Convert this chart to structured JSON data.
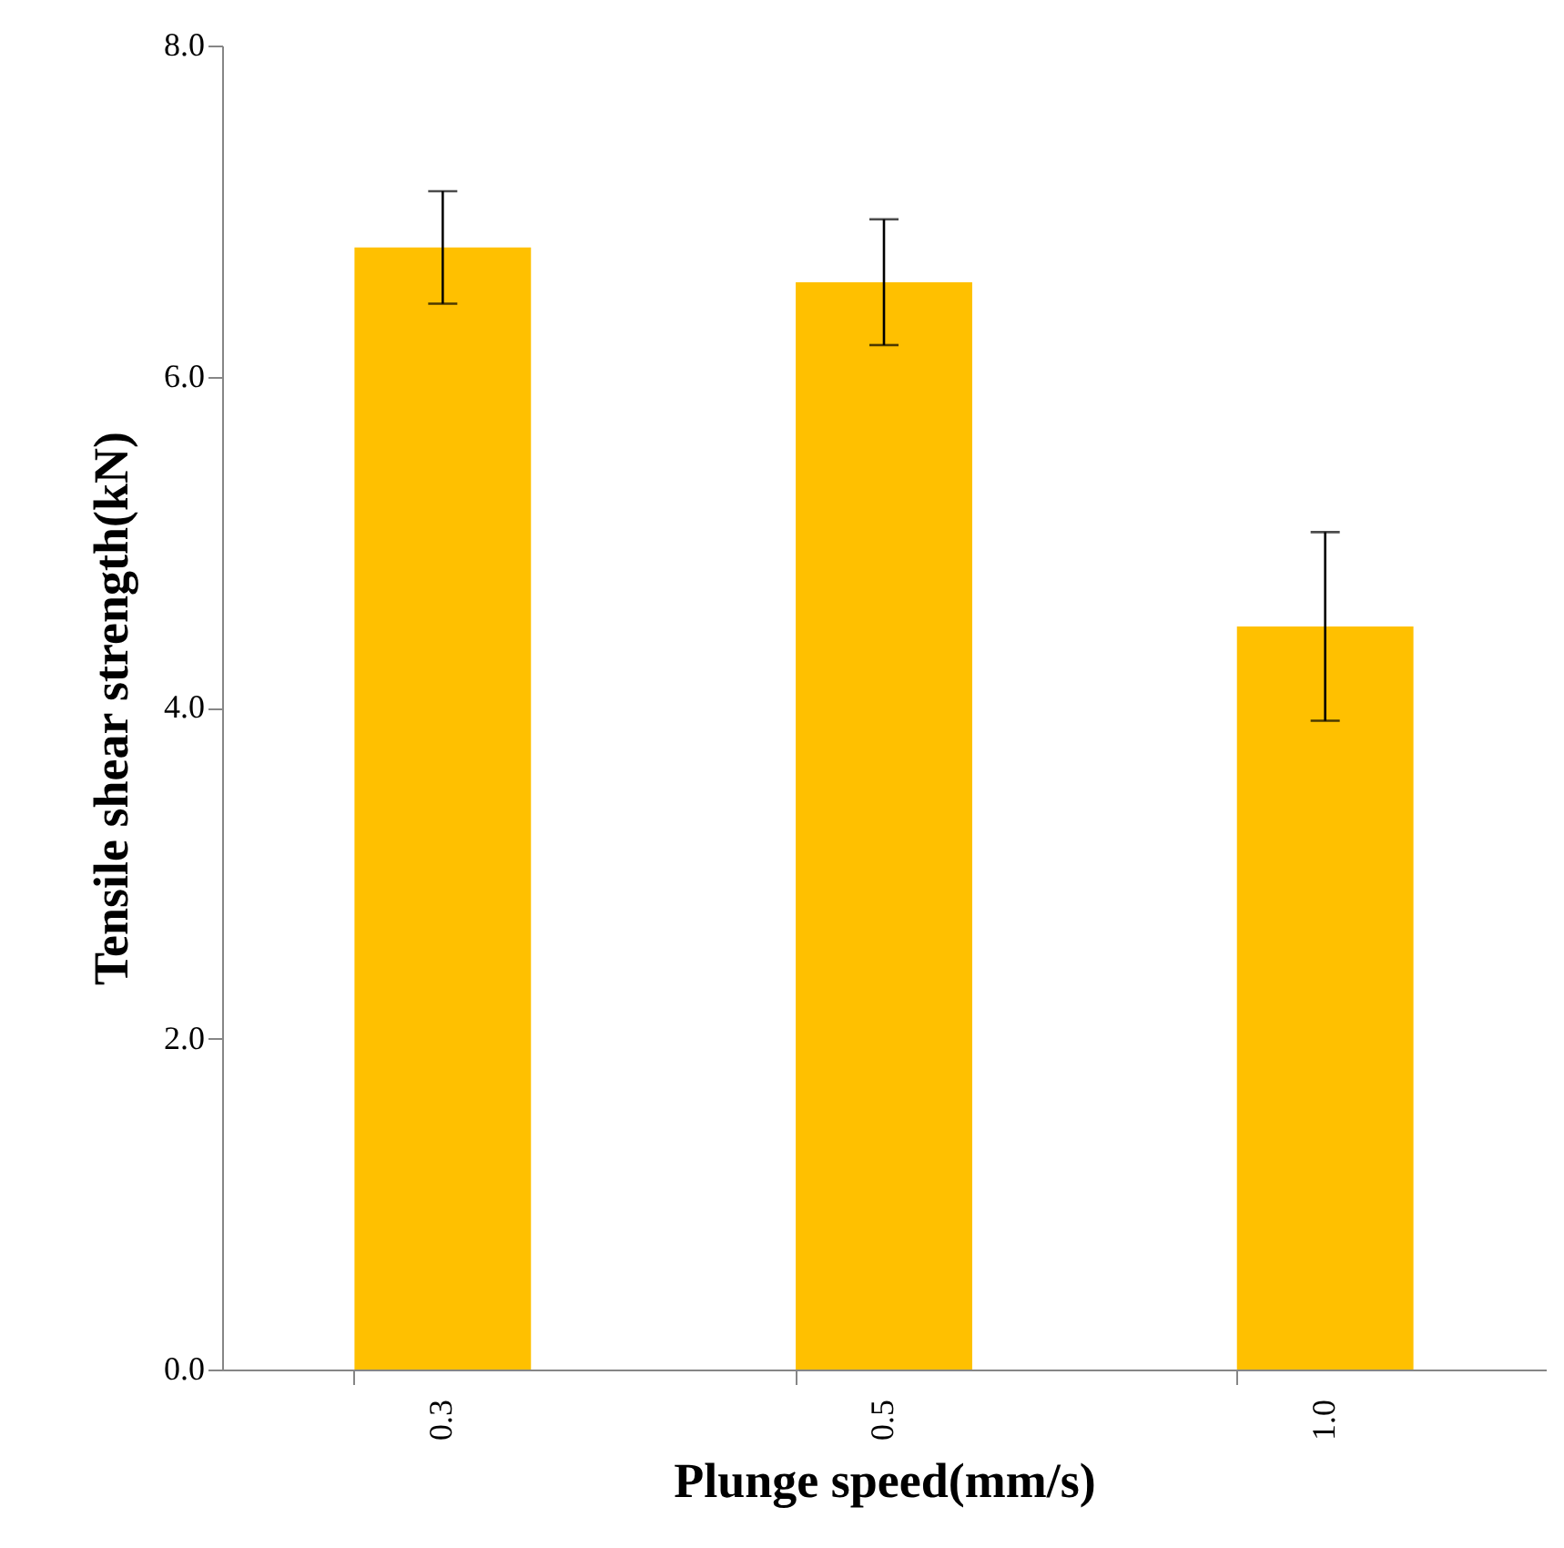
{
  "chart_data": {
    "type": "bar",
    "xlabel": "Plunge speed(mm/s)",
    "ylabel": "Tensile shear strength(kN)",
    "categories": [
      "0.3",
      "0.5",
      "1.0"
    ],
    "values": [
      6.78,
      6.57,
      4.49
    ],
    "errors": [
      0.34,
      0.38,
      0.57
    ],
    "color": "#ffc000",
    "ylim": [
      0,
      8
    ],
    "yticks": [
      {
        "value": 0,
        "label": "0.0"
      },
      {
        "value": 2,
        "label": "2.0"
      },
      {
        "value": 4,
        "label": "4.0"
      },
      {
        "value": 6,
        "label": "6.0"
      },
      {
        "value": 8,
        "label": "8.0"
      }
    ],
    "grid": false
  }
}
